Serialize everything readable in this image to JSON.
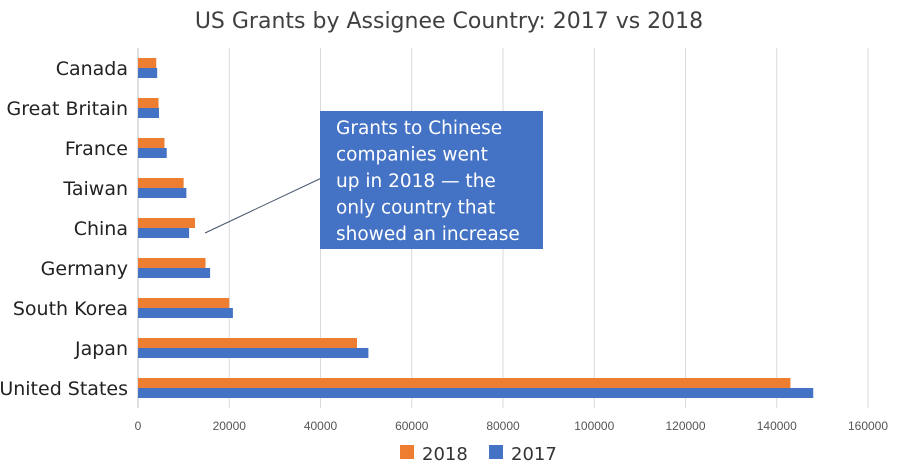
{
  "chart_data": {
    "type": "bar",
    "orientation": "horizontal",
    "title": "US Grants by Assignee Country: 2017 vs 2018",
    "categories": [
      "Canada",
      "Great Britain",
      "France",
      "Taiwan",
      "China",
      "Germany",
      "South Korea",
      "Japan",
      "United States"
    ],
    "series": [
      {
        "name": "2018",
        "color": "#ED7D31",
        "values": [
          4000,
          4500,
          5800,
          10000,
          12500,
          14800,
          20000,
          48000,
          143000
        ]
      },
      {
        "name": "2017",
        "color": "#4472C4",
        "values": [
          4200,
          4600,
          6300,
          10600,
          11200,
          15800,
          20800,
          50500,
          148000
        ]
      }
    ],
    "xlim": [
      0,
      160000
    ],
    "xticks": [
      "0",
      "20000",
      "40000",
      "60000",
      "80000",
      "100000",
      "120000",
      "140000",
      "160000"
    ],
    "grid": true,
    "legend_position": "bottom",
    "annotation": {
      "lines": [
        "Grants to Chinese",
        "companies went",
        "up in 2018 — the",
        "only country that",
        "showed an increase"
      ],
      "box_color": "#4472C4",
      "text_color": "#FFFFFF",
      "points_to": "China"
    }
  }
}
